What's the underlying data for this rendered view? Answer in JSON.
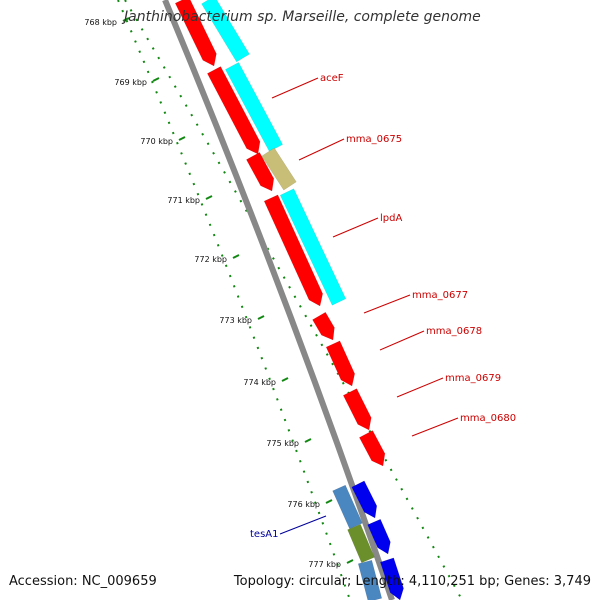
{
  "title": "Janthinobacterium sp. Marseille, complete genome",
  "footer": {
    "accession": "Accession: NC_009659",
    "summary": "Topology: circular; Length: 4,110,251 bp; Genes: 3,749"
  },
  "kbp_labels": [
    "768 kbp",
    "769 kbp",
    "770 kbp",
    "771 kbp",
    "772 kbp",
    "773 kbp",
    "774 kbp",
    "775 kbp",
    "776 kbp",
    "777 kbp"
  ],
  "gene_labels": [
    {
      "text": "aceF",
      "color": "#cc0000"
    },
    {
      "text": "mma_0675",
      "color": "#cc0000"
    },
    {
      "text": "lpdA",
      "color": "#cc0000"
    },
    {
      "text": "mma_0677",
      "color": "#cc0000"
    },
    {
      "text": "mma_0678",
      "color": "#cc0000"
    },
    {
      "text": "mma_0679",
      "color": "#cc0000"
    },
    {
      "text": "mma_0680",
      "color": "#cc0000"
    },
    {
      "text": "tesA1",
      "color": "#000099"
    }
  ],
  "colors": {
    "cds_red": "#ff0000",
    "cyan": "#00ffff",
    "khaki": "#c8be78",
    "blue": "#0000ee",
    "steel": "#4a86c0",
    "olive": "#6b8f2a",
    "backbone": "#888888",
    "tick_green": "#118811"
  }
}
